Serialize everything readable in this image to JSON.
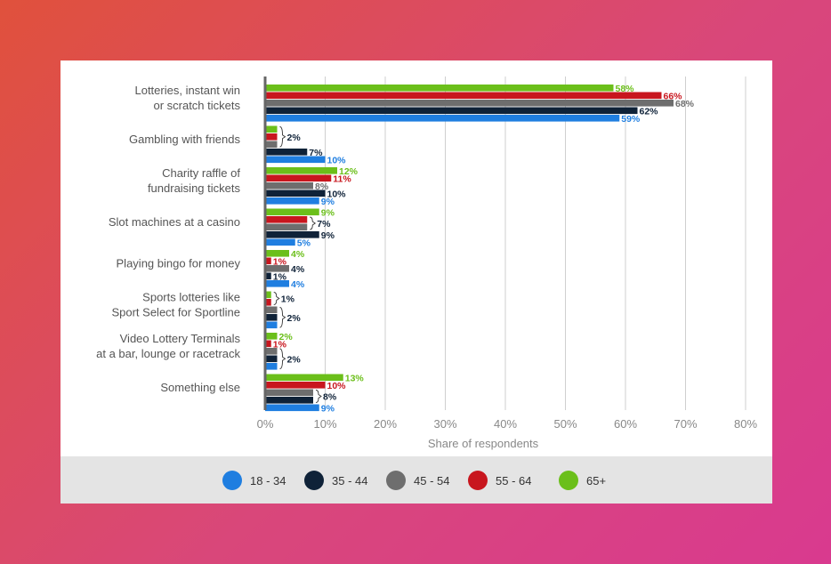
{
  "chart_data": {
    "type": "bar",
    "orientation": "horizontal",
    "xlabel": "Share of respondents",
    "xlim": [
      0,
      80
    ],
    "xticks": [
      "0%",
      "10%",
      "20%",
      "30%",
      "40%",
      "50%",
      "60%",
      "70%",
      "80%"
    ],
    "grid": true,
    "legend_position": "bottom",
    "categories": [
      [
        "Lotteries, instant win",
        "or scratch tickets"
      ],
      [
        "Gambling with friends"
      ],
      [
        "Charity raffle of",
        "fundraising tickets"
      ],
      [
        "Slot machines at a casino"
      ],
      [
        "Playing bingo for money"
      ],
      [
        "Sports lotteries like",
        "Sport Select for Sportline"
      ],
      [
        "Video Lottery Terminals",
        "at a bar, lounge or racetrack"
      ],
      [
        "Something else"
      ]
    ],
    "series": [
      {
        "name": "65+",
        "color": "#6bbf1a",
        "values": [
          58,
          2,
          12,
          9,
          4,
          1,
          2,
          13
        ]
      },
      {
        "name": "55 - 64",
        "color": "#c8161e",
        "values": [
          66,
          2,
          11,
          7,
          1,
          1,
          1,
          10
        ]
      },
      {
        "name": "45 - 54",
        "color": "#6e6e6e",
        "values": [
          68,
          2,
          8,
          7,
          4,
          2,
          2,
          8
        ]
      },
      {
        "name": "35 - 44",
        "color": "#0f2238",
        "values": [
          62,
          7,
          10,
          9,
          1,
          2,
          2,
          8
        ]
      },
      {
        "name": "18 - 34",
        "color": "#1f7ee0",
        "values": [
          59,
          10,
          9,
          5,
          4,
          2,
          2,
          9
        ]
      }
    ],
    "data_labels": [
      [
        {
          "text": "58%",
          "series": 0,
          "color": "#6bbf1a"
        },
        {
          "text": "66%",
          "series": 1,
          "color": "#c8161e"
        },
        {
          "text": "68%",
          "series": 2,
          "color": "#6e6e6e"
        },
        {
          "text": "62%",
          "series": 3,
          "color": "#0f2238"
        },
        {
          "text": "59%",
          "series": 4,
          "color": "#1f7ee0"
        }
      ],
      [
        {
          "text": "2%",
          "span": [
            0,
            2
          ],
          "color": "#0f2238"
        },
        {
          "text": "7%",
          "series": 3,
          "color": "#0f2238"
        },
        {
          "text": "10%",
          "series": 4,
          "color": "#1f7ee0"
        }
      ],
      [
        {
          "text": "12%",
          "series": 0,
          "color": "#6bbf1a"
        },
        {
          "text": "11%",
          "series": 1,
          "color": "#c8161e"
        },
        {
          "text": "8%",
          "series": 2,
          "color": "#6e6e6e"
        },
        {
          "text": "10%",
          "series": 3,
          "color": "#0f2238"
        },
        {
          "text": "9%",
          "series": 4,
          "color": "#1f7ee0"
        }
      ],
      [
        {
          "text": "9%",
          "series": 0,
          "color": "#6bbf1a"
        },
        {
          "text": "7%",
          "span": [
            1,
            2
          ],
          "color": "#0f2238"
        },
        {
          "text": "9%",
          "series": 3,
          "color": "#0f2238"
        },
        {
          "text": "5%",
          "series": 4,
          "color": "#1f7ee0"
        }
      ],
      [
        {
          "text": "4%",
          "series": 0,
          "color": "#6bbf1a"
        },
        {
          "text": "1%",
          "series": 1,
          "color": "#c8161e"
        },
        {
          "text": "4%",
          "series": 2,
          "color": "#0f2238"
        },
        {
          "text": "1%",
          "series": 3,
          "color": "#0f2238"
        },
        {
          "text": "4%",
          "series": 4,
          "color": "#1f7ee0"
        }
      ],
      [
        {
          "text": "1%",
          "span": [
            0,
            1
          ],
          "color": "#0f2238"
        },
        {
          "text": "2%",
          "span": [
            2,
            4
          ],
          "color": "#0f2238"
        }
      ],
      [
        {
          "text": "2%",
          "series": 0,
          "color": "#6bbf1a"
        },
        {
          "text": "1%",
          "series": 1,
          "color": "#c8161e"
        },
        {
          "text": "2%",
          "span": [
            2,
            4
          ],
          "color": "#0f2238"
        }
      ],
      [
        {
          "text": "13%",
          "series": 0,
          "color": "#6bbf1a"
        },
        {
          "text": "10%",
          "series": 1,
          "color": "#c8161e"
        },
        {
          "text": "8%",
          "span": [
            2,
            3
          ],
          "color": "#0f2238"
        },
        {
          "text": "9%",
          "series": 4,
          "color": "#1f7ee0"
        }
      ]
    ]
  },
  "legend": {
    "items": [
      {
        "label": "18 - 34",
        "color": "#1f7ee0"
      },
      {
        "label": "35 - 44",
        "color": "#0f2238"
      },
      {
        "label": "45 - 54",
        "color": "#6e6e6e"
      },
      {
        "label": "55 - 64",
        "color": "#c8161e"
      },
      {
        "label": "65+",
        "color": "#6bbf1a"
      }
    ]
  }
}
